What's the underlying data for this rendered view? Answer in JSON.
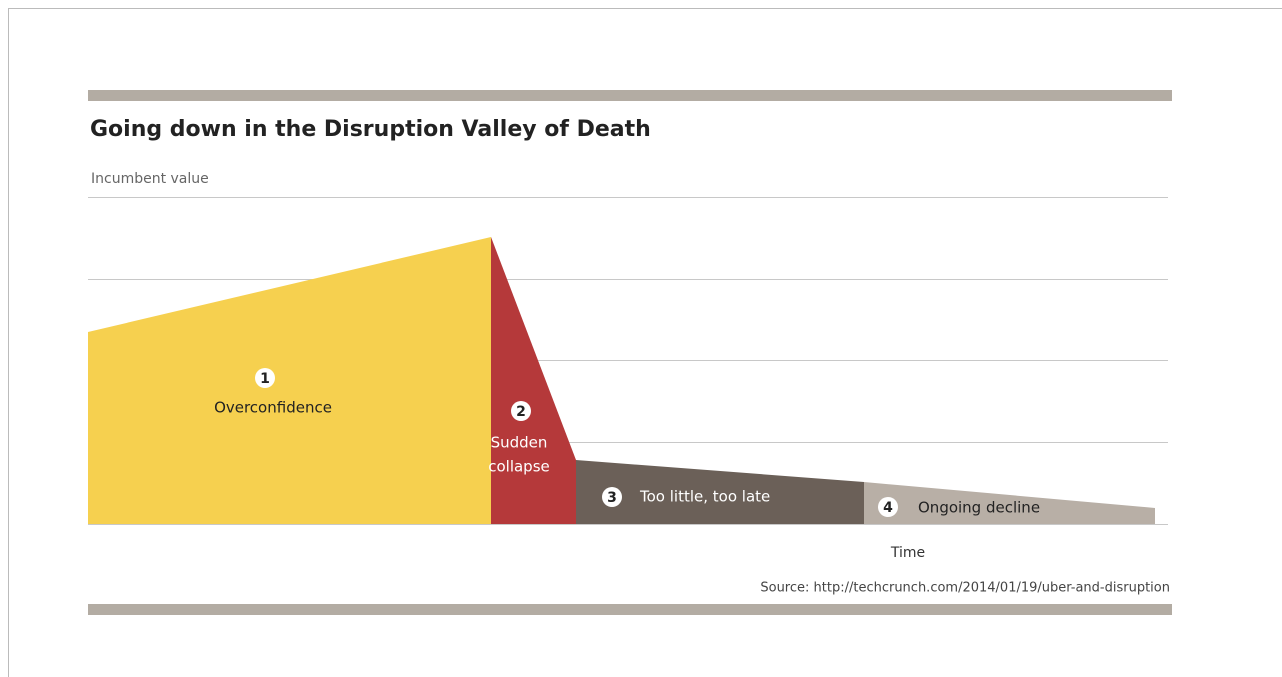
{
  "title": "Going down in the Disruption Valley of Death",
  "y_label": "Incumbent value",
  "x_label": "Time",
  "source": "Source: http://techcrunch.com/2014/01/19/uber-and-disruption",
  "phases": [
    {
      "number": "1",
      "label": [
        "Overconfidence"
      ]
    },
    {
      "number": "2",
      "label": [
        "Sudden",
        "collapse"
      ]
    },
    {
      "number": "3",
      "label": [
        "Too little, too late"
      ]
    },
    {
      "number": "4",
      "label": [
        "Ongoing decline"
      ]
    }
  ]
}
